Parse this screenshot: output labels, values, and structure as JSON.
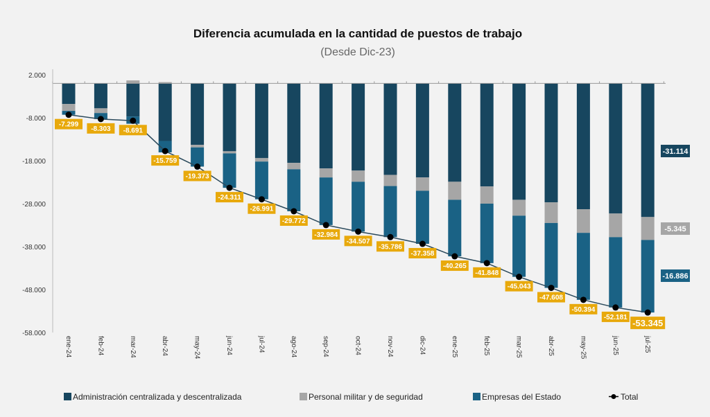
{
  "chart_data": {
    "type": "bar",
    "stacked": true,
    "title": "Diferencia acumulada en la cantidad de puestos de trabajo",
    "subtitle": "(Desde Dic-23)",
    "xlabel": "",
    "ylabel": "",
    "ylim": [
      -58000,
      2000
    ],
    "yticks": [
      2000,
      -8000,
      -18000,
      -28000,
      -38000,
      -48000,
      -58000
    ],
    "ytick_labels": [
      "2.000",
      "-8.000",
      "-18.000",
      "-28.000",
      "-38.000",
      "-48.000",
      "-58.000"
    ],
    "grid": false,
    "legend_position": "bottom",
    "categories": [
      "ene-24",
      "feb-24",
      "mar-24",
      "abr-24",
      "may-24",
      "jun-24",
      "jul-24",
      "ago-24",
      "sep-24",
      "oct-24",
      "nov-24",
      "dic-24",
      "ene-25",
      "feb-25",
      "mar-25",
      "abr-25",
      "may-25",
      "jun-25",
      "jul-25"
    ],
    "series": [
      {
        "name": "Administración centralizada y descentralizada",
        "color": "#17465f",
        "values": [
          -4800,
          -5800,
          -7700,
          -13400,
          -14300,
          -15800,
          -17400,
          -18500,
          -19800,
          -20300,
          -21300,
          -21900,
          -22900,
          -24000,
          -27100,
          -27700,
          -29300,
          -30300,
          -31114
        ]
      },
      {
        "name": "Personal militar y de seguridad",
        "color": "#a6a6a6",
        "values": [
          -1600,
          -1100,
          700,
          300,
          -600,
          -500,
          -800,
          -1500,
          -2100,
          -2600,
          -2600,
          -3100,
          -4200,
          -4000,
          -3700,
          -4800,
          -5500,
          -5500,
          -5345
        ]
      },
      {
        "name": "Empresas del Estado",
        "color": "#1a6285",
        "values": [
          -899,
          -1403,
          -1691,
          -2659,
          -4473,
          -8011,
          -8791,
          -9772,
          -11084,
          -11607,
          -11886,
          -12358,
          -13165,
          -13848,
          -14243,
          -15108,
          -15594,
          -16381,
          -16886
        ]
      }
    ],
    "total": {
      "name": "Total",
      "color": "#000000",
      "label_color": "#e8a90c",
      "values": [
        -7299,
        -8303,
        -8691,
        -15759,
        -19373,
        -24311,
        -26991,
        -29772,
        -32984,
        -34507,
        -35786,
        -37358,
        -40265,
        -41848,
        -45043,
        -47608,
        -50394,
        -52181,
        -53345
      ],
      "labels": [
        "-7.299",
        "-8.303",
        "-8.691",
        "-15.759",
        "-19.373",
        "-24.311",
        "-26.991",
        "-29.772",
        "-32.984",
        "-34.507",
        "-35.786",
        "-37.358",
        "-40.265",
        "-41.848",
        "-45.043",
        "-47.608",
        "-50.394",
        "-52.181",
        "-53.345"
      ]
    },
    "end_labels": [
      "-31.114",
      "-5.345",
      "-16.886"
    ]
  }
}
